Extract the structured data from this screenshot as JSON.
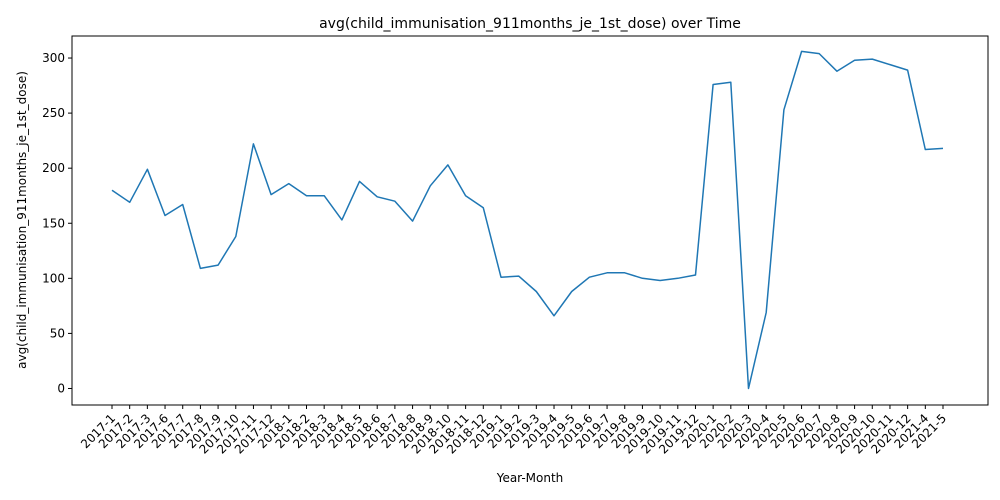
{
  "chart_data": {
    "type": "line",
    "title": "avg(child_immunisation_911months_je_1st_dose) over Time",
    "xlabel": "Year-Month",
    "ylabel": "avg(child_immunisation_911months_je_1st_dose)",
    "ylim": [
      -15,
      320
    ],
    "yticks": [
      0,
      50,
      100,
      150,
      200,
      250,
      300
    ],
    "grid": false,
    "legend": "none",
    "line_color": "#1f77b4",
    "series": [
      {
        "x": [
          "2017-1",
          "2017-2",
          "2017-3",
          "2017-6",
          "2017-7",
          "2017-8",
          "2017-9",
          "2017-10",
          "2017-11",
          "2017-12",
          "2018-1",
          "2018-2",
          "2018-3",
          "2018-4",
          "2018-5",
          "2018-6",
          "2018-7",
          "2018-8",
          "2018-9",
          "2018-10",
          "2018-11",
          "2018-12",
          "2019-1",
          "2019-2",
          "2019-3",
          "2019-4",
          "2019-5",
          "2019-6",
          "2019-7",
          "2019-8",
          "2019-9",
          "2019-10",
          "2019-11",
          "2019-12",
          "2020-1",
          "2020-2",
          "2020-3",
          "2020-4",
          "2020-5",
          "2020-6",
          "2020-7",
          "2020-8",
          "2020-9",
          "2020-10",
          "2020-11",
          "2020-12",
          "2021-4",
          "2021-5"
        ],
        "values": [
          180,
          169,
          199,
          157,
          167,
          109,
          112,
          138,
          222,
          176,
          186,
          175,
          175,
          153,
          188,
          174,
          170,
          152,
          184,
          203,
          175,
          164,
          101,
          102,
          88,
          66,
          88,
          101,
          105,
          105,
          100,
          98,
          100,
          103,
          276,
          278,
          0,
          69,
          253,
          306,
          304,
          288,
          298,
          299,
          294,
          289,
          217,
          218
        ]
      }
    ]
  }
}
